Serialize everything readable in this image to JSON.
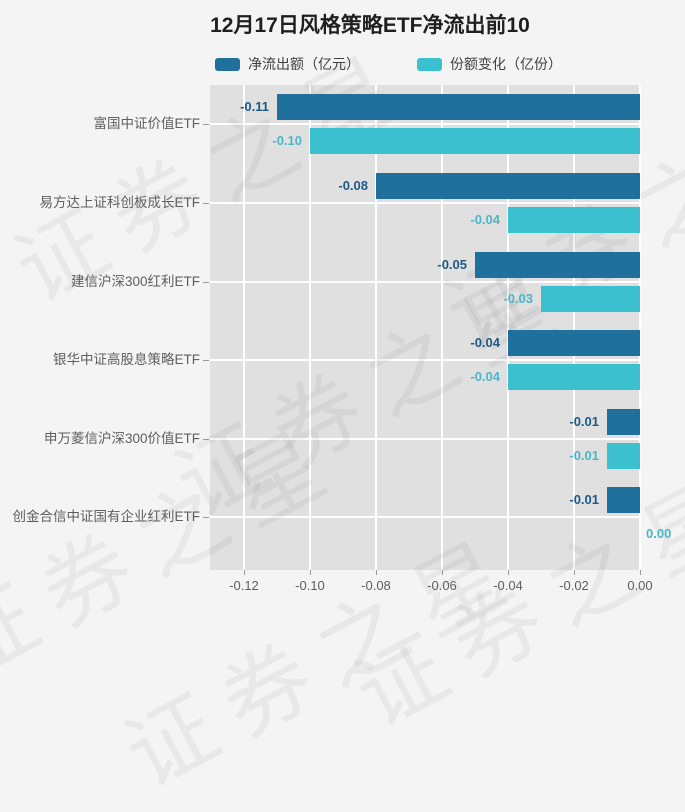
{
  "title": "12月17日风格策略ETF净流出前10",
  "watermark": "证券之星",
  "chart_data": {
    "type": "bar",
    "orientation": "horizontal",
    "title": "12月17日风格策略ETF净流出前10",
    "xlabel": "",
    "ylabel": "",
    "legend_position": "top",
    "grid": true,
    "categories": [
      "富国中证价值ETF",
      "易方达上证科创板成长ETF",
      "建信沪深300红利ETF",
      "银华中证高股息策略ETF",
      "申万菱信沪深300价值ETF",
      "创金合信中证国有企业红利ETF"
    ],
    "series": [
      {
        "name": "净流出额（亿元）",
        "color": "#20709e",
        "label_color": "#1d5a84",
        "values": [
          -0.11,
          -0.08,
          -0.05,
          -0.04,
          -0.01,
          -0.01
        ]
      },
      {
        "name": "份额变化（亿份）",
        "color": "#3ac0cf",
        "label_color": "#4cb6c9",
        "values": [
          -0.1,
          -0.04,
          -0.03,
          -0.04,
          -0.01,
          0.0
        ]
      }
    ],
    "x_ticks": [
      "-0.12",
      "-0.10",
      "-0.08",
      "-0.06",
      "-0.04",
      "-0.02",
      "0.00"
    ],
    "x_tick_values": [
      -0.12,
      -0.1,
      -0.08,
      -0.06,
      -0.04,
      -0.02,
      0.0
    ],
    "xlim": [
      -0.1303,
      0
    ],
    "colors": {
      "page_background": "#f4f4f5",
      "plot_background": "#e0e0e1",
      "gridline": "#ffffff",
      "axis_text": "#5e5e5e",
      "title_text": "#1f1f1f"
    }
  }
}
